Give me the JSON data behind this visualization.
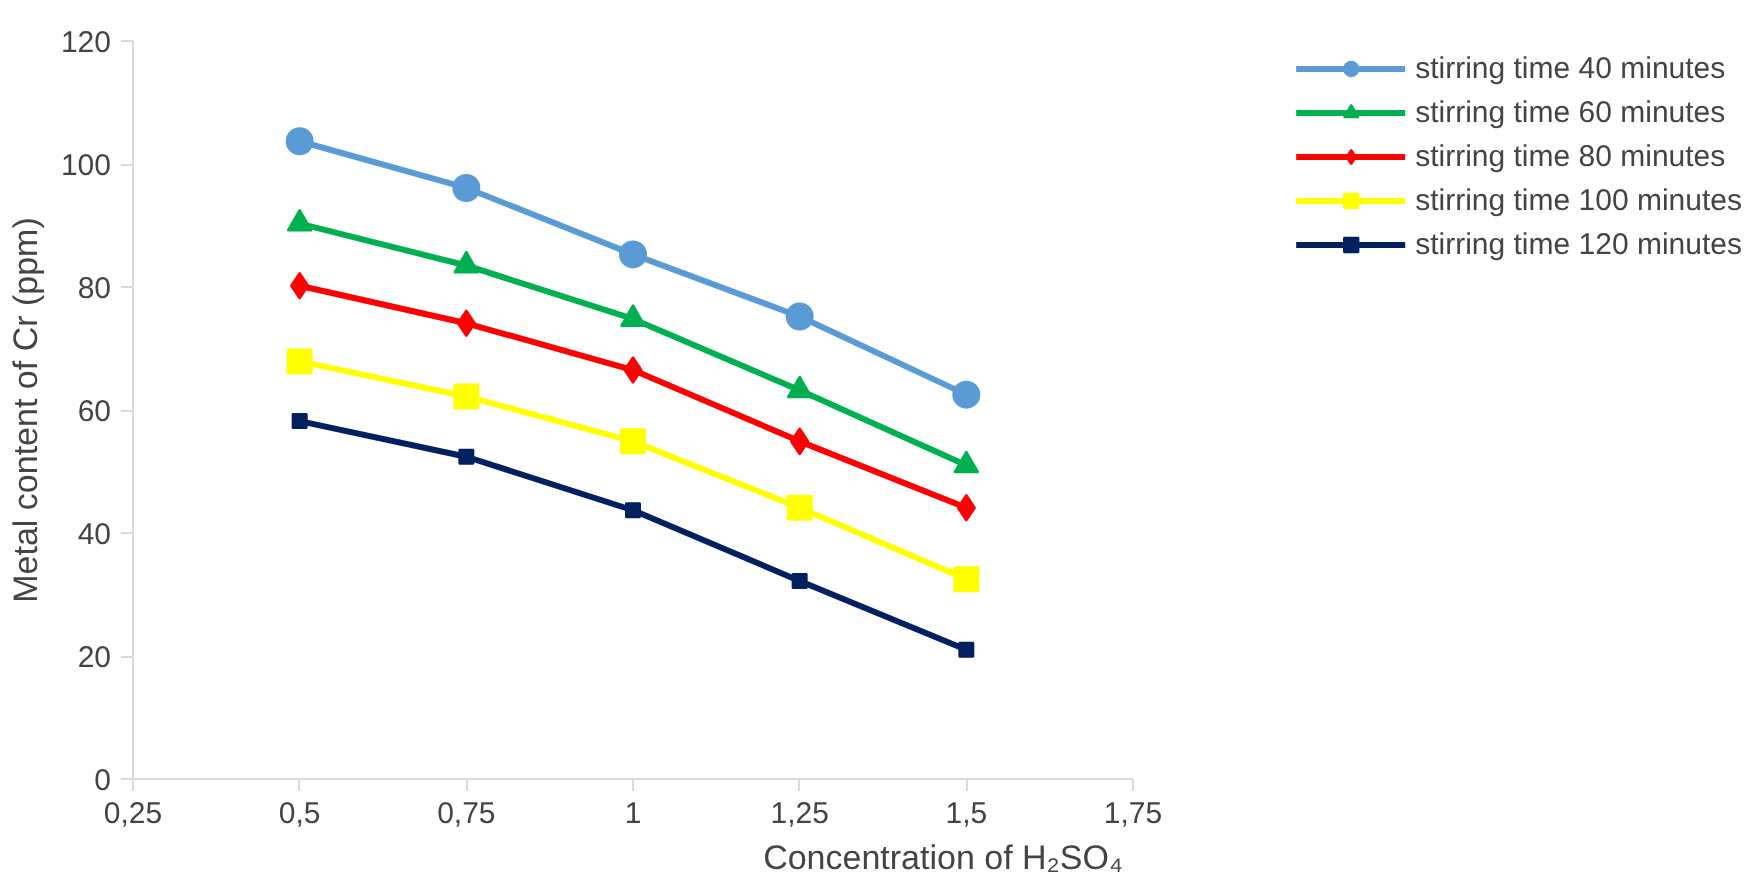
{
  "chart_data": {
    "type": "line",
    "xlabel": "Concentration of H₂SO₄",
    "ylabel": "Metal content of Cr (ppm)",
    "x": [
      0.5,
      0.75,
      1,
      1.25,
      1.5
    ],
    "xlim": [
      0.25,
      1.75
    ],
    "xticks": [
      {
        "value": 0.25,
        "label": "0,25"
      },
      {
        "value": 0.5,
        "label": "0,5"
      },
      {
        "value": 0.75,
        "label": "0,75"
      },
      {
        "value": 1,
        "label": "1"
      },
      {
        "value": 1.25,
        "label": "1,25"
      },
      {
        "value": 1.5,
        "label": "1,5"
      },
      {
        "value": 1.75,
        "label": "1,75"
      }
    ],
    "ylim": [
      0,
      120
    ],
    "yticks": [
      0,
      20,
      40,
      60,
      80,
      100,
      120
    ],
    "grid": false,
    "legend": "right",
    "series": [
      {
        "name": "stirring time 40 minutes",
        "color": "#5b9bd5",
        "marker": "circle",
        "values": [
          103.7,
          96.1,
          85.3,
          75.2,
          62.5
        ]
      },
      {
        "name": "stirring time 60 minutes",
        "color": "#00b050",
        "marker": "triangle",
        "values": [
          90.3,
          83.5,
          74.8,
          63.2,
          51
        ]
      },
      {
        "name": "stirring time 80 minutes",
        "color": "#ff0000",
        "marker": "diamond",
        "values": [
          80.2,
          74.1,
          66.5,
          54.9,
          44.1
        ]
      },
      {
        "name": "stirring time 100 minutes",
        "color": "#ffff00",
        "marker": "square",
        "values": [
          67.9,
          62.2,
          54.9,
          44.1,
          32.5
        ]
      },
      {
        "name": "stirring time 120 minutes",
        "color": "#002060",
        "marker": "square",
        "values": [
          58.2,
          52.4,
          43.7,
          32.2,
          21
        ]
      }
    ]
  }
}
